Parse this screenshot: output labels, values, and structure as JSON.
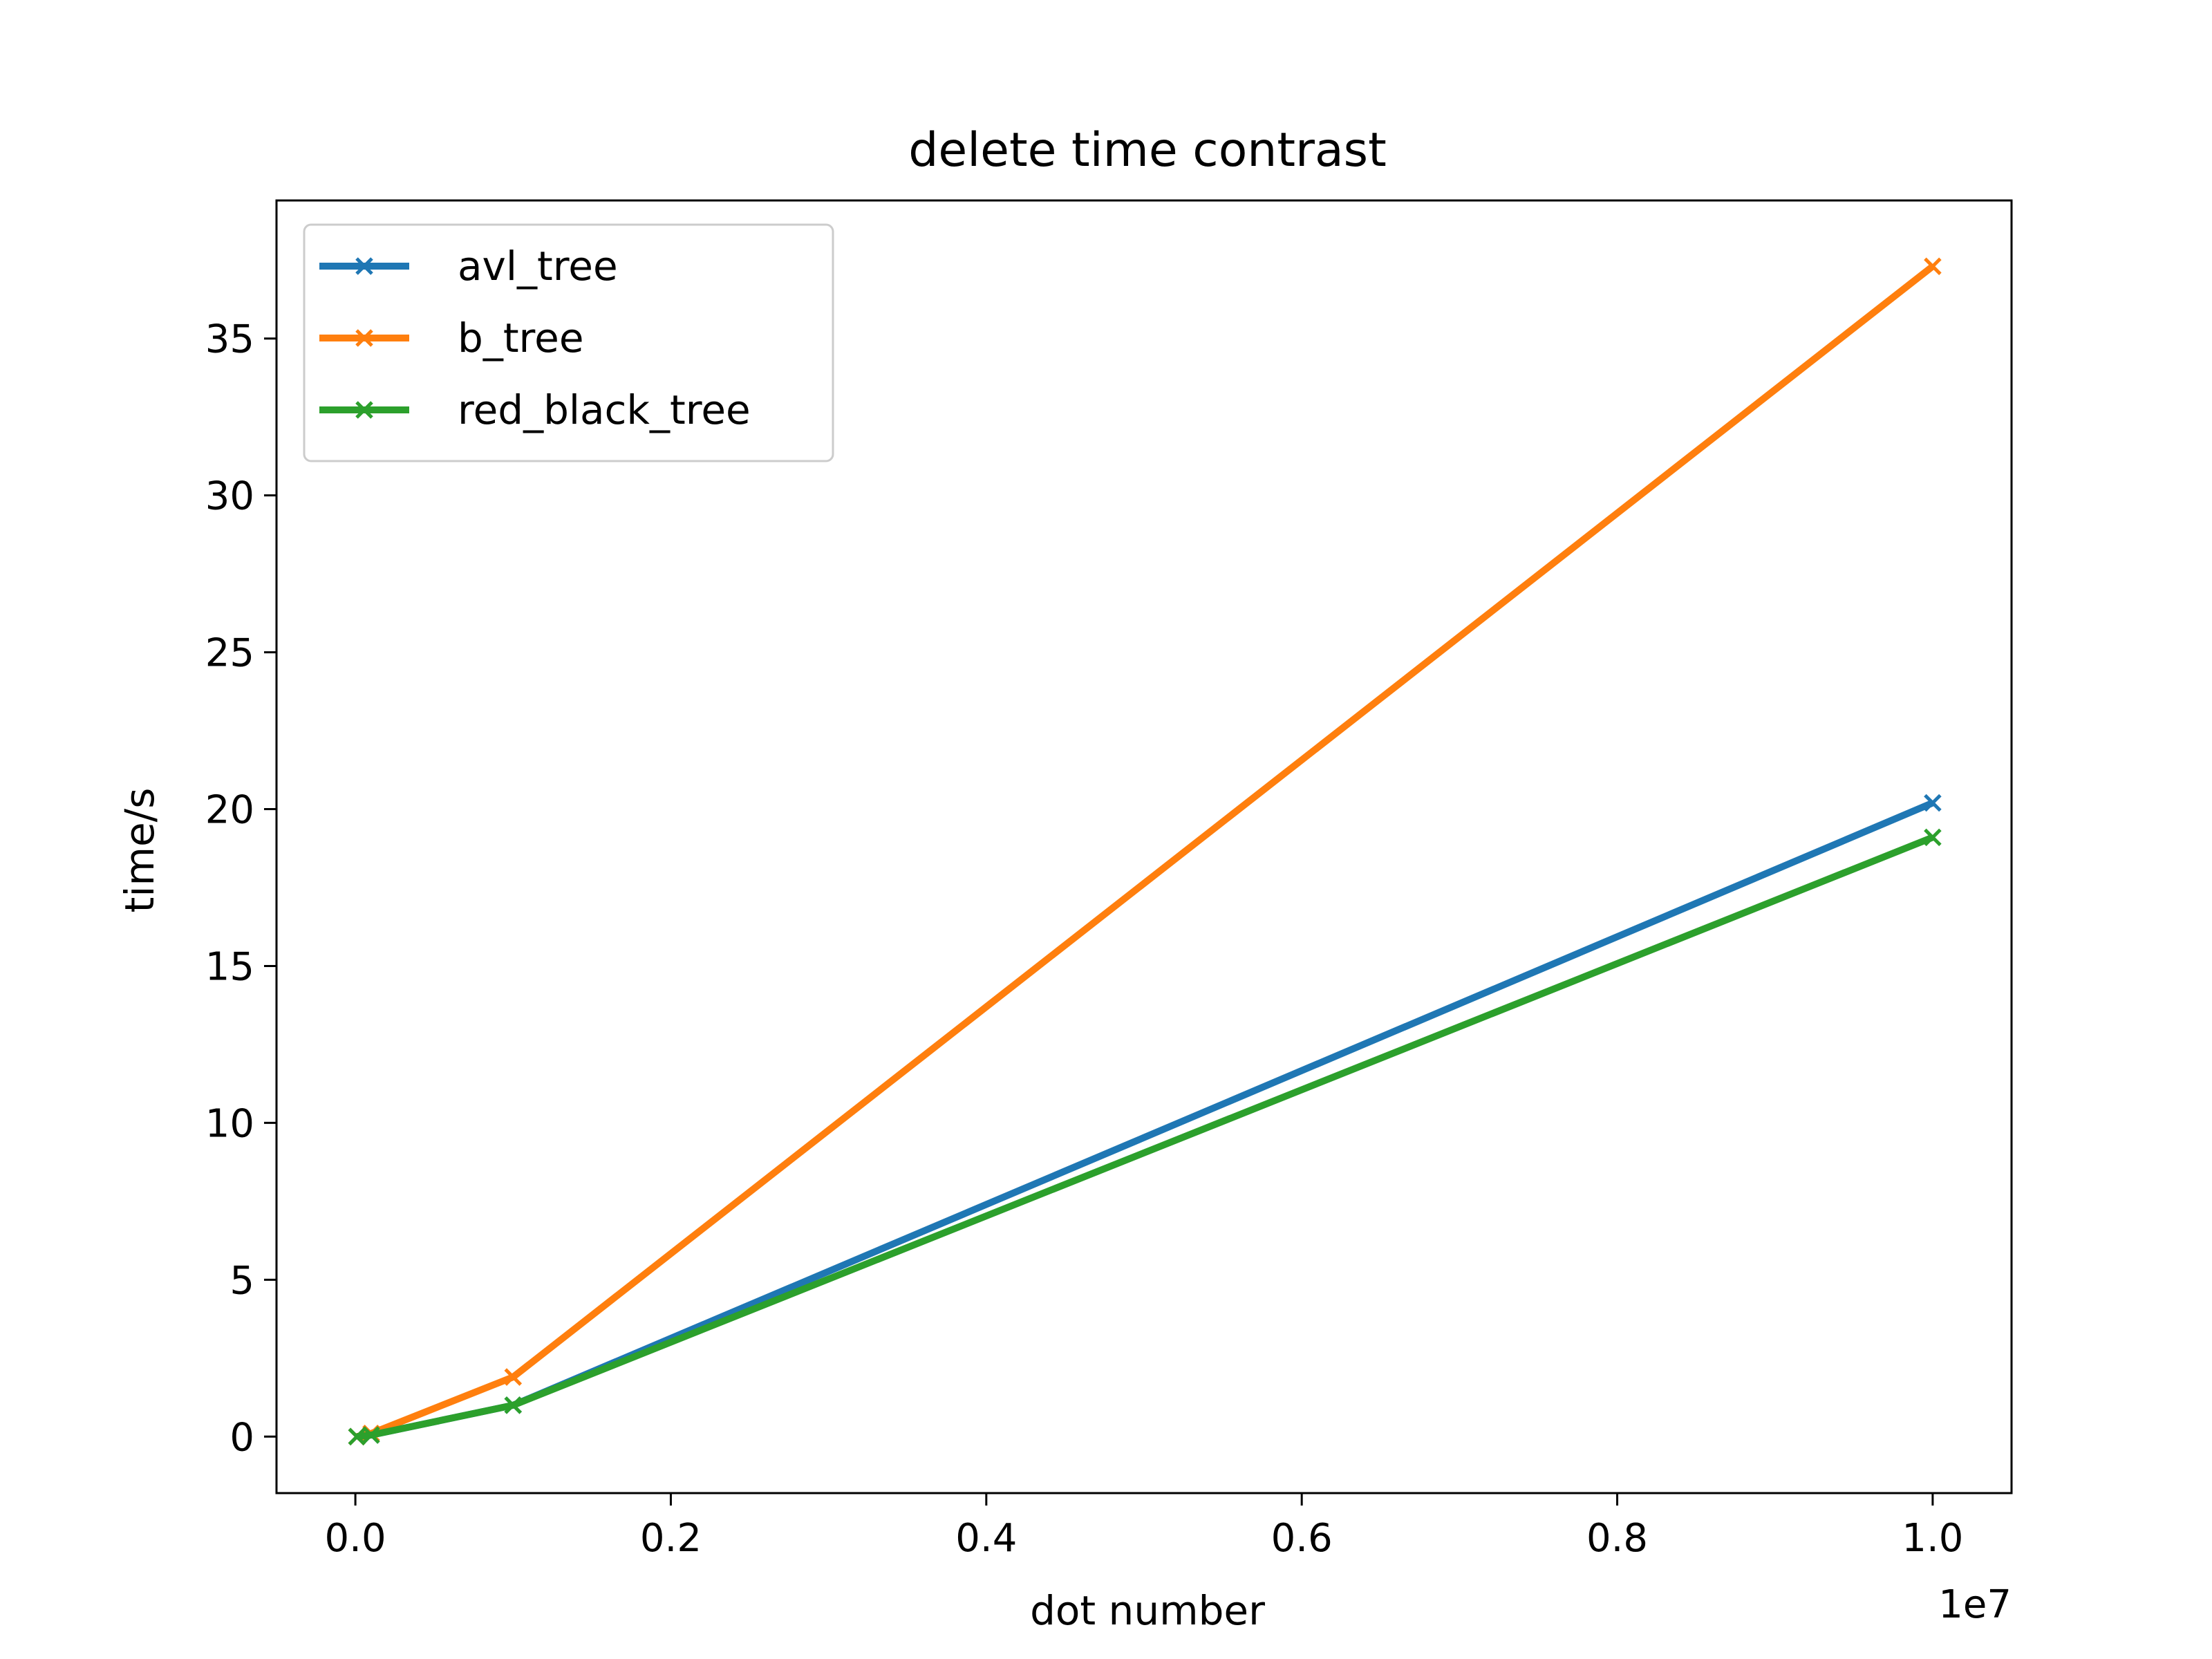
{
  "chart_data": {
    "type": "line",
    "title": "delete time contrast",
    "xlabel": "dot number",
    "ylabel": "time/s",
    "x_offset_text": "1e7",
    "xlim": [
      -0.05,
      1.05
    ],
    "ylim": [
      -1.8,
      39.4
    ],
    "x_ticks": [
      0.0,
      0.2,
      0.4,
      0.6,
      0.8,
      1.0
    ],
    "x_tick_labels": [
      "0.0",
      "0.2",
      "0.4",
      "0.6",
      "0.8",
      "1.0"
    ],
    "y_ticks": [
      0,
      5,
      10,
      15,
      20,
      25,
      30,
      35
    ],
    "y_tick_labels": [
      "0",
      "5",
      "10",
      "15",
      "20",
      "25",
      "30",
      "35"
    ],
    "grid": false,
    "legend_position": "upper-left",
    "x": [
      0.001,
      0.01,
      0.1,
      1.0
    ],
    "series": [
      {
        "name": "avl_tree",
        "color": "#1f77b4",
        "marker": "x",
        "values": [
          0.0,
          0.05,
          1.0,
          20.2
        ]
      },
      {
        "name": "b_tree",
        "color": "#ff7f0e",
        "marker": "x",
        "values": [
          0.0,
          0.1,
          1.9,
          37.3
        ]
      },
      {
        "name": "red_black_tree",
        "color": "#2ca02c",
        "marker": "x",
        "values": [
          0.0,
          0.05,
          1.0,
          19.1
        ]
      }
    ]
  }
}
